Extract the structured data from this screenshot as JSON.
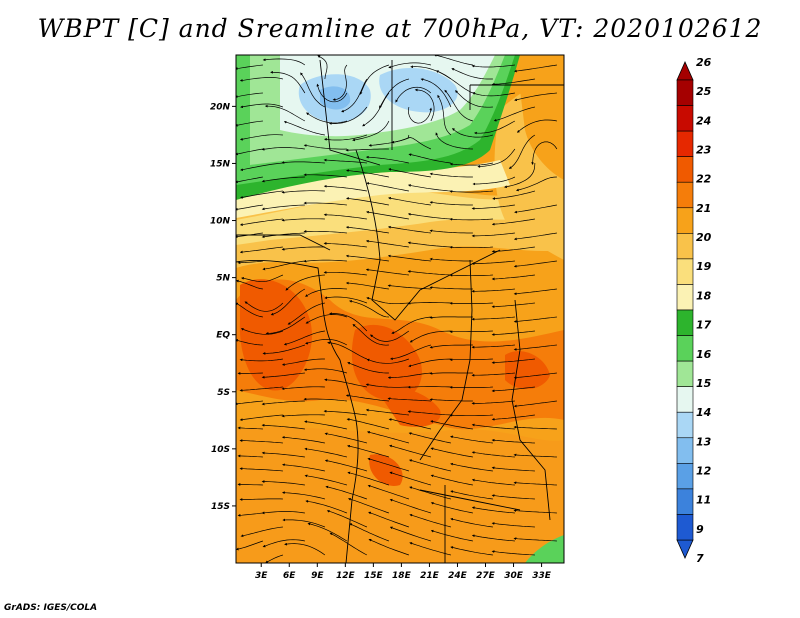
{
  "title": "WBPT [C] and Sreamline at 700hPa, VT: 2020102612",
  "credit": "GrADS: IGES/COLA",
  "map": {
    "lat_labels": [
      {
        "lat": 20,
        "label": "20N"
      },
      {
        "lat": 15,
        "label": "15N"
      },
      {
        "lat": 10,
        "label": "10N"
      },
      {
        "lat": 5,
        "label": "5N"
      },
      {
        "lat": 0,
        "label": "EQ"
      },
      {
        "lat": -5,
        "label": "5S"
      },
      {
        "lat": -10,
        "label": "10S"
      },
      {
        "lat": -15,
        "label": "15S"
      }
    ],
    "lon_labels": [
      {
        "lon": 3,
        "label": "3E"
      },
      {
        "lon": 6,
        "label": "6E"
      },
      {
        "lon": 9,
        "label": "9E"
      },
      {
        "lon": 12,
        "label": "12E"
      },
      {
        "lon": 15,
        "label": "15E"
      },
      {
        "lon": 18,
        "label": "18E"
      },
      {
        "lon": 21,
        "label": "21E"
      },
      {
        "lon": 24,
        "label": "24E"
      },
      {
        "lon": 27,
        "label": "27E"
      },
      {
        "lon": 30,
        "label": "30E"
      },
      {
        "lon": 33,
        "label": "33E"
      }
    ],
    "lon_range": [
      0.3,
      35.4
    ],
    "lat_range": [
      -20.0,
      24.5
    ]
  },
  "colorbar": {
    "labels": [
      "26",
      "25",
      "24",
      "23",
      "22",
      "21",
      "20",
      "19",
      "18",
      "17",
      "16",
      "15",
      "14",
      "13",
      "12",
      "11",
      "9",
      "7"
    ],
    "colors": [
      "#a50000",
      "#c80a00",
      "#e62800",
      "#f05a00",
      "#f57d0a",
      "#f7a21a",
      "#f9c24a",
      "#fadf7c",
      "#fbf2b4",
      "#2db42d",
      "#5ad25a",
      "#a0e696",
      "#e6f7f0",
      "#aad7f5",
      "#82beef",
      "#5aa0e6",
      "#3c82dc",
      "#1e5ad2"
    ]
  }
}
